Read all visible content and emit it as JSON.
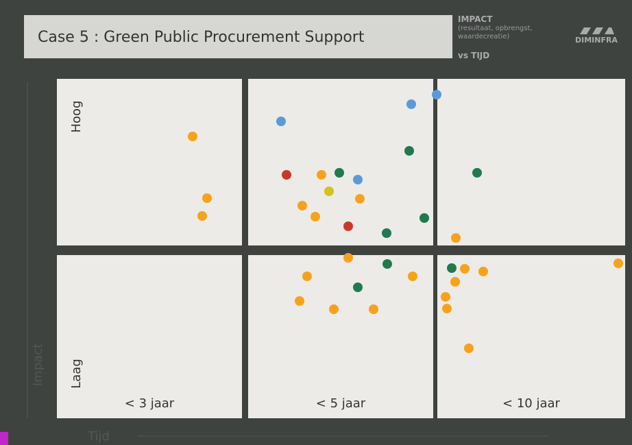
{
  "header": {
    "title": "Case 5 : Green Public Procurement Support",
    "subtitle_bold": "IMPACT",
    "subtitle_note": "(resultaat, opbrengst, waardecreatie)",
    "subtitle_vs": "vs TIJD",
    "logo": "DIMINFRA"
  },
  "axes": {
    "y_label": "Impact",
    "y_high": "Hoog",
    "y_low": "Laag",
    "x_label": "Tijd"
  },
  "columns": [
    "< 3 jaar",
    "< 5 jaar",
    "< 10 jaar"
  ]
}
